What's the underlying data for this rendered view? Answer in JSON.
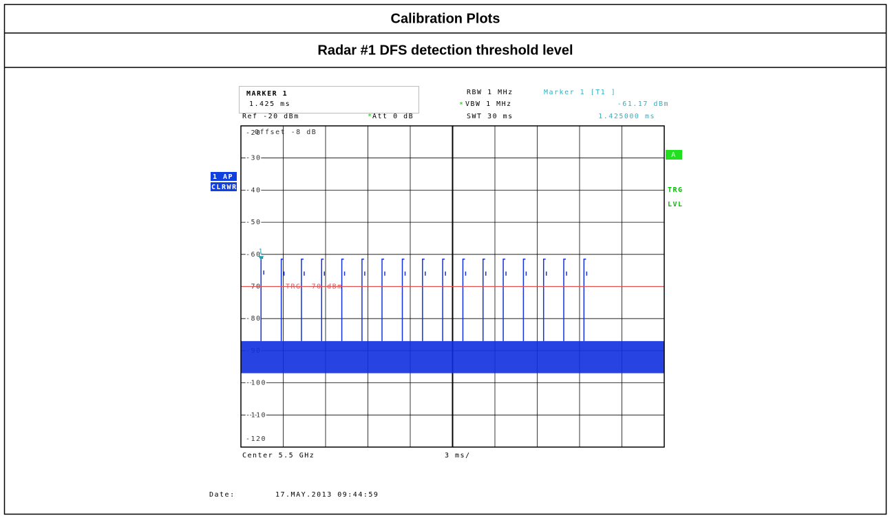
{
  "header": {
    "title": "Calibration Plots",
    "subtitle": "Radar #1 DFS detection threshold level"
  },
  "instrument": {
    "marker_box_title": "MARKER 1",
    "marker_box_value": "1.425 ms",
    "rbw": "RBW 1 MHz",
    "vbw": "VBW 1 MHz",
    "swt": "SWT 30 ms",
    "marker_title": "Marker 1 [T1 ]",
    "marker_level": "-61.17 dBm",
    "marker_time": "1.425000 ms",
    "ref": "Ref -20 dBm",
    "att": "Att  0 dB",
    "offset": "Offset -8 dB",
    "trace_mode": "1 AP",
    "trace_detector": "CLRWR",
    "side_a": "A",
    "side_trg": "TRG",
    "side_lvl": "LVL",
    "center": "Center 5.5 GHz",
    "span_per_div": "3 ms/",
    "date_label": "Date:",
    "date": "17.MAY.2013  09:44:59"
  },
  "chart_data": {
    "type": "pulse",
    "xlim": [
      0,
      30
    ],
    "ylim": [
      -120,
      -20
    ],
    "yticks": [
      -20,
      -30,
      -40,
      -50,
      -60,
      -70,
      -80,
      -90,
      -100,
      -110,
      -120
    ],
    "color": "#1030e0",
    "x": [
      1.425,
      2.86,
      4.29,
      5.72,
      7.15,
      8.58,
      10.0,
      11.44,
      12.87,
      14.3,
      15.73,
      17.16,
      18.59,
      20.02,
      21.45,
      22.88,
      24.31
    ],
    "values": [
      -61.17,
      -61.5,
      -61.5,
      -61.5,
      -61.5,
      -61.5,
      -61.5,
      -61.5,
      -61.5,
      -61.5,
      -61.5,
      -61.5,
      -61.5,
      -61.5,
      -61.5,
      -61.5,
      -61.5
    ],
    "noise_band": [
      -97,
      -87
    ],
    "threshold": {
      "value": -70,
      "label": "TRG -70 dBm",
      "color": "#e05050"
    },
    "marker": {
      "x": 1.425,
      "y": -61.17,
      "label": "1",
      "color": "#20a0b0"
    }
  }
}
